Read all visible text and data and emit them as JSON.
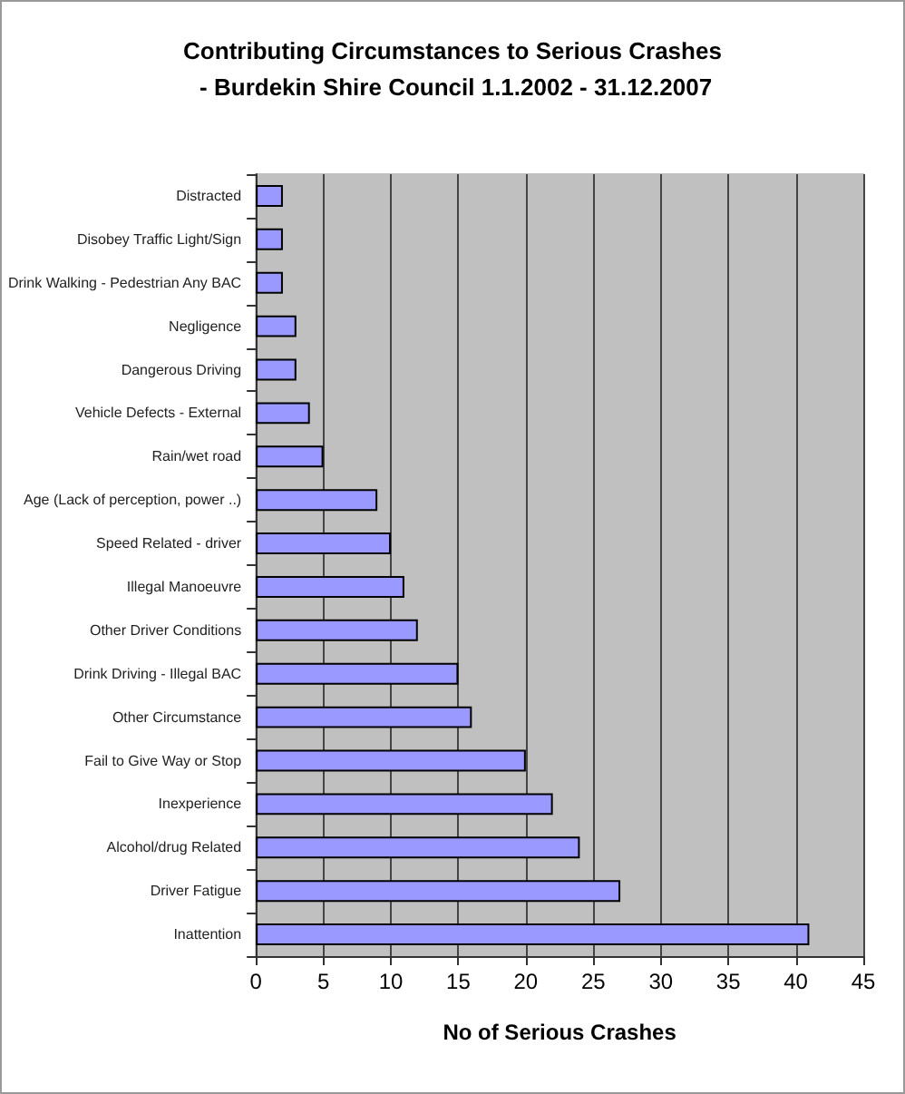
{
  "chart_data": {
    "type": "bar",
    "orientation": "horizontal",
    "title": "Contributing Circumstances to Serious Crashes - Burdekin Shire Council 1.1.2002 - 31.12.2007",
    "xlabel": "No of Serious Crashes",
    "categories": [
      "Distracted",
      "Disobey Traffic Light/Sign",
      "Drink Walking - Pedestrian Any BAC",
      "Negligence",
      "Dangerous Driving",
      "Vehicle Defects - External",
      "Rain/wet road",
      "Age (Lack of perception, power ..)",
      "Speed Related - driver",
      "Illegal Manoeuvre",
      "Other Driver Conditions",
      "Drink Driving - Illegal BAC",
      "Other Circumstance",
      "Fail to Give Way or Stop",
      "Inexperience",
      "Alcohol/drug Related",
      "Driver Fatigue",
      "Inattention"
    ],
    "values": [
      2,
      2,
      2,
      3,
      3,
      4,
      5,
      9,
      10,
      11,
      12,
      15,
      16,
      20,
      22,
      24,
      27,
      41
    ],
    "color": "#9999ff",
    "xlim": [
      0,
      45
    ],
    "xticks": [
      0,
      5,
      10,
      15,
      20,
      25,
      30,
      35,
      40,
      45
    ],
    "grid": "x"
  }
}
